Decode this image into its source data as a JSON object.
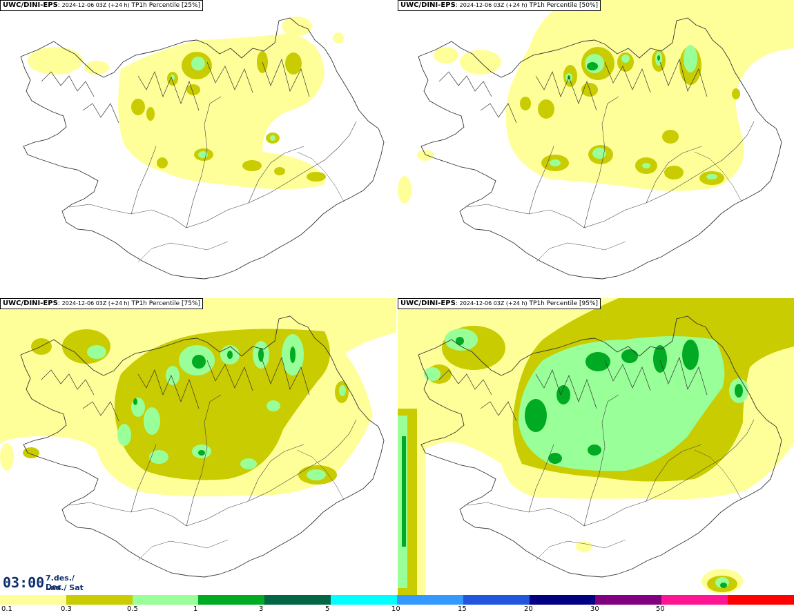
{
  "panels": [
    {
      "source": "UWC/DINI-EPS",
      "run": "2024-12-06 03Z (+24 h)",
      "field": "TP1h Percentile [25%]"
    },
    {
      "source": "UWC/DINI-EPS",
      "run": "2024-12-06 03Z (+24 h)",
      "field": "TP1h Percentile [50%]"
    },
    {
      "source": "UWC/DINI-EPS",
      "run": "2024-12-06 03Z (+24 h)",
      "field": "TP1h Percentile [75%]"
    },
    {
      "source": "UWC/DINI-EPS",
      "run": "2024-12-06 03Z (+24 h)",
      "field": "TP1h Percentile [95%]"
    }
  ],
  "valid_time": {
    "time": "03:00",
    "date": "7.des./ Dec",
    "weekday": "Lau./ Sat"
  },
  "colorbar": {
    "ticks": [
      "0.1",
      "0.3",
      "0.5",
      "1",
      "3",
      "5",
      "10",
      "15",
      "20",
      "30",
      "50"
    ],
    "colors": [
      "#ffff99",
      "#c8cc00",
      "#99ff99",
      "#00aa22",
      "#006644",
      "#00ffff",
      "#3399ff",
      "#2255dd",
      "#000080",
      "#800080",
      "#ff1493",
      "#ff0000"
    ]
  },
  "legend_colors": {
    "land_outline": "#333333",
    "level_0_1": "#ffff99",
    "level_0_3": "#c8cc00",
    "level_0_5": "#99ff99",
    "level_1": "#00aa22"
  }
}
